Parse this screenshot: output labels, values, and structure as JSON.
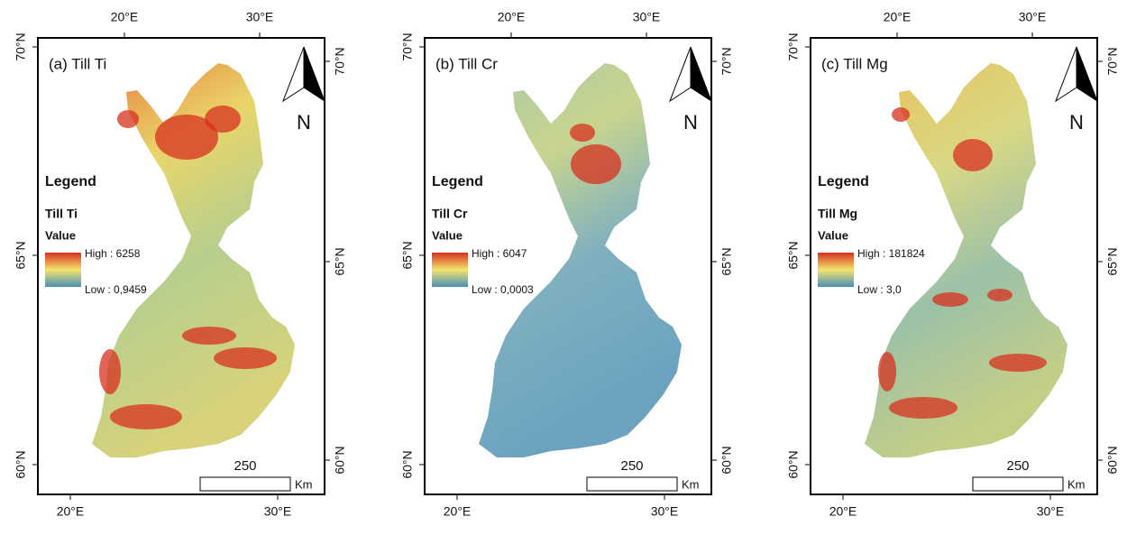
{
  "panels": [
    {
      "title": "(a) Till Ti",
      "legend": {
        "heading": "Legend",
        "layer": "Till Ti",
        "field": "Value",
        "high": "High : 6258",
        "low": "Low : 0,9459"
      }
    },
    {
      "title": "(b) Till Cr",
      "legend": {
        "heading": "Legend",
        "layer": "Till Cr",
        "field": "Value",
        "high": "High : 6047",
        "low": "Low : 0,0003"
      }
    },
    {
      "title": "(c) Till Mg",
      "legend": {
        "heading": "Legend",
        "layer": "Till Mg",
        "field": "Value",
        "high": "High : 181824",
        "low": "Low : 3,0"
      }
    }
  ],
  "graticule": {
    "top": [
      "20°E",
      "30°E"
    ],
    "bottom": [
      "20°E",
      "30°E"
    ],
    "left": [
      "70°N",
      "65°N",
      "60°N"
    ],
    "right": [
      "70°N",
      "65°N",
      "60°N"
    ]
  },
  "scale_bar": {
    "distance": "250",
    "unit": "Km"
  },
  "north_arrow": "N"
}
